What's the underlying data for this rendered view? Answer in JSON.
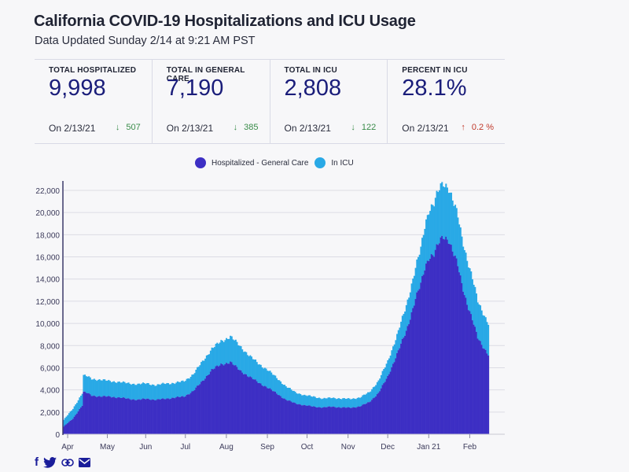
{
  "header": {
    "title": "California COVID-19 Hospitalizations and ICU Usage",
    "subtitle": "Data Updated Sunday 2/14 at 9:21 AM PST"
  },
  "stats": [
    {
      "label": "TOTAL HOSPITALIZED",
      "value": "9,998",
      "date": "On 2/13/21",
      "direction": "down",
      "change": "507"
    },
    {
      "label": "TOTAL IN GENERAL CARE",
      "value": "7,190",
      "date": "On 2/13/21",
      "direction": "down",
      "change": "385"
    },
    {
      "label": "TOTAL IN ICU",
      "value": "2,808",
      "date": "On 2/13/21",
      "direction": "down",
      "change": "122"
    },
    {
      "label": "PERCENT IN ICU",
      "value": "28.1%",
      "date": "On 2/13/21",
      "direction": "up",
      "change": "0.2 %"
    }
  ],
  "icons": {
    "down_arrow": "↓",
    "up_arrow": "↑"
  },
  "share": [
    {
      "name": "facebook-icon",
      "glyph": "f"
    },
    {
      "name": "twitter-icon",
      "glyph": "🐦"
    },
    {
      "name": "link-icon",
      "glyph": "⊝"
    },
    {
      "name": "email-icon",
      "glyph": "✉"
    }
  ],
  "colors": {
    "general_care": "#3d2fc4",
    "icu": "#29a9e6",
    "value_text": "#1a1d7a",
    "down": "#3a8c4a",
    "up": "#c0392b"
  },
  "chart_data": {
    "type": "bar",
    "stacked": true,
    "title": "",
    "xlabel": "",
    "ylabel": "",
    "ylim": [
      0,
      22000
    ],
    "yticks": [
      "0",
      "2,000",
      "4,000",
      "6,000",
      "8,000",
      "10,000",
      "12,000",
      "14,000",
      "16,000",
      "18,000",
      "20,000",
      "22,000"
    ],
    "ytick_values": [
      0,
      2000,
      4000,
      6000,
      8000,
      10000,
      12000,
      14000,
      16000,
      18000,
      20000,
      22000
    ],
    "xticks": [
      "Apr",
      "May",
      "Jun",
      "Jul",
      "Aug",
      "Sep",
      "Oct",
      "Nov",
      "Dec",
      "Jan 21",
      "Feb"
    ],
    "xtick_positions": [
      3,
      33,
      62,
      92,
      123,
      154,
      184,
      215,
      245,
      276,
      307
    ],
    "grid": true,
    "legend": "top-center",
    "x_start": "2020-03-29",
    "x_end": "2021-02-13",
    "series": [
      {
        "name": "Hospitalized - General Care",
        "x": [
          0,
          7,
          14,
          15,
          18,
          21,
          28,
          35,
          42,
          49,
          56,
          63,
          70,
          77,
          84,
          91,
          98,
          105,
          112,
          119,
          126,
          133,
          140,
          147,
          154,
          161,
          168,
          175,
          182,
          189,
          196,
          203,
          210,
          217,
          224,
          231,
          238,
          245,
          252,
          259,
          266,
          270,
          273,
          276,
          280,
          284,
          287,
          291,
          294,
          298,
          301,
          305,
          309,
          313,
          321
        ],
        "values": [
          700,
          1400,
          2600,
          3800,
          3700,
          3500,
          3400,
          3400,
          3300,
          3200,
          3100,
          3200,
          3100,
          3200,
          3300,
          3400,
          3900,
          4800,
          5800,
          6300,
          6500,
          5800,
          5200,
          4700,
          4200,
          3700,
          3100,
          2800,
          2600,
          2500,
          2400,
          2500,
          2400,
          2400,
          2500,
          2900,
          3700,
          5200,
          7200,
          9300,
          12200,
          13500,
          15000,
          16000,
          16200,
          17300,
          17900,
          17600,
          16500,
          15200,
          13600,
          11800,
          10300,
          8700,
          7190
        ]
      },
      {
        "name": "In ICU",
        "x": [
          0,
          7,
          14,
          15,
          18,
          21,
          28,
          35,
          42,
          49,
          56,
          63,
          70,
          77,
          84,
          91,
          98,
          105,
          112,
          119,
          126,
          133,
          140,
          147,
          154,
          161,
          168,
          175,
          182,
          189,
          196,
          203,
          210,
          217,
          224,
          231,
          238,
          245,
          252,
          259,
          266,
          270,
          273,
          276,
          280,
          284,
          287,
          291,
          294,
          298,
          301,
          305,
          309,
          313,
          321
        ],
        "values": [
          600,
          900,
          1100,
          1500,
          1500,
          1500,
          1500,
          1400,
          1400,
          1400,
          1400,
          1400,
          1300,
          1400,
          1300,
          1400,
          1500,
          1800,
          1900,
          2100,
          2300,
          2200,
          1900,
          1700,
          1600,
          1400,
          1200,
          1000,
          900,
          900,
          800,
          800,
          800,
          800,
          800,
          900,
          1100,
          1400,
          1700,
          2300,
          2800,
          3200,
          3800,
          4300,
          4600,
          4800,
          4800,
          4700,
          4600,
          4400,
          4200,
          4000,
          3700,
          3300,
          2808
        ]
      }
    ]
  }
}
